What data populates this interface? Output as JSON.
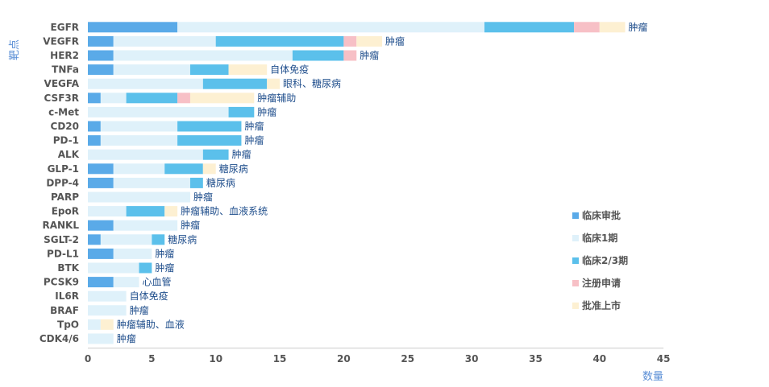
{
  "chart_data": {
    "type": "bar",
    "orientation": "horizontal",
    "stacked": true,
    "categories": [
      "EGFR",
      "VEGFR",
      "HER2",
      "TNFa",
      "VEGFA",
      "CSF3R",
      "c-Met",
      "CD20",
      "PD-1",
      "ALK",
      "GLP-1",
      "DPP-4",
      "PARP",
      "EpoR",
      "RANKL",
      "SGLT-2",
      "PD-L1",
      "BTK",
      "PCSK9",
      "IL6R",
      "BRAF",
      "TpO",
      "CDK4/6"
    ],
    "series": [
      {
        "name": "临床审批",
        "color": "#5aaae8",
        "values": [
          7,
          2,
          2,
          2,
          0,
          1,
          0,
          1,
          1,
          0,
          2,
          2,
          0,
          0,
          2,
          1,
          2,
          0,
          2,
          0,
          0,
          0,
          0
        ]
      },
      {
        "name": "临床1期",
        "color": "#dff1fa",
        "values": [
          24,
          8,
          14,
          6,
          9,
          2,
          11,
          6,
          6,
          9,
          4,
          6,
          8,
          3,
          5,
          4,
          3,
          4,
          2,
          3,
          3,
          1,
          2
        ]
      },
      {
        "name": "临床2/3期",
        "color": "#5bc0eb",
        "values": [
          7,
          10,
          4,
          3,
          5,
          4,
          2,
          5,
          5,
          2,
          3,
          1,
          0,
          3,
          0,
          1,
          0,
          1,
          0,
          0,
          0,
          0,
          0
        ]
      },
      {
        "name": "注册申请",
        "color": "#f7c0c6",
        "values": [
          2,
          1,
          1,
          0,
          0,
          1,
          0,
          0,
          0,
          0,
          0,
          0,
          0,
          0,
          0,
          0,
          0,
          0,
          0,
          0,
          0,
          0,
          0
        ]
      },
      {
        "name": "批准上市",
        "color": "#fdf0d2",
        "values": [
          2,
          2,
          0,
          3,
          1,
          5,
          0,
          0,
          0,
          0,
          1,
          0,
          0,
          1,
          0,
          0,
          0,
          0,
          0,
          0,
          0,
          1,
          0
        ]
      }
    ],
    "annotations": [
      "肿瘤",
      "肿瘤",
      "肿瘤",
      "自体免疫",
      "眼科、糖尿病",
      "肿瘤辅助",
      "肿瘤",
      "肿瘤",
      "肿瘤",
      "肿瘤",
      "糖尿病",
      "糖尿病",
      "肿瘤",
      "肿瘤辅助、血液系统",
      "肿瘤",
      "糖尿病",
      "肿瘤",
      "肿瘤",
      "心血管",
      "自体免疫",
      "肿瘤",
      "肿瘤辅助、血液",
      "肿瘤"
    ],
    "xlabel": "数量",
    "ylabel": "靶点",
    "xlim": [
      0,
      45
    ],
    "xticks": [
      0,
      5,
      10,
      15,
      20,
      25,
      30,
      35,
      40,
      45
    ],
    "legend_position": "right"
  }
}
